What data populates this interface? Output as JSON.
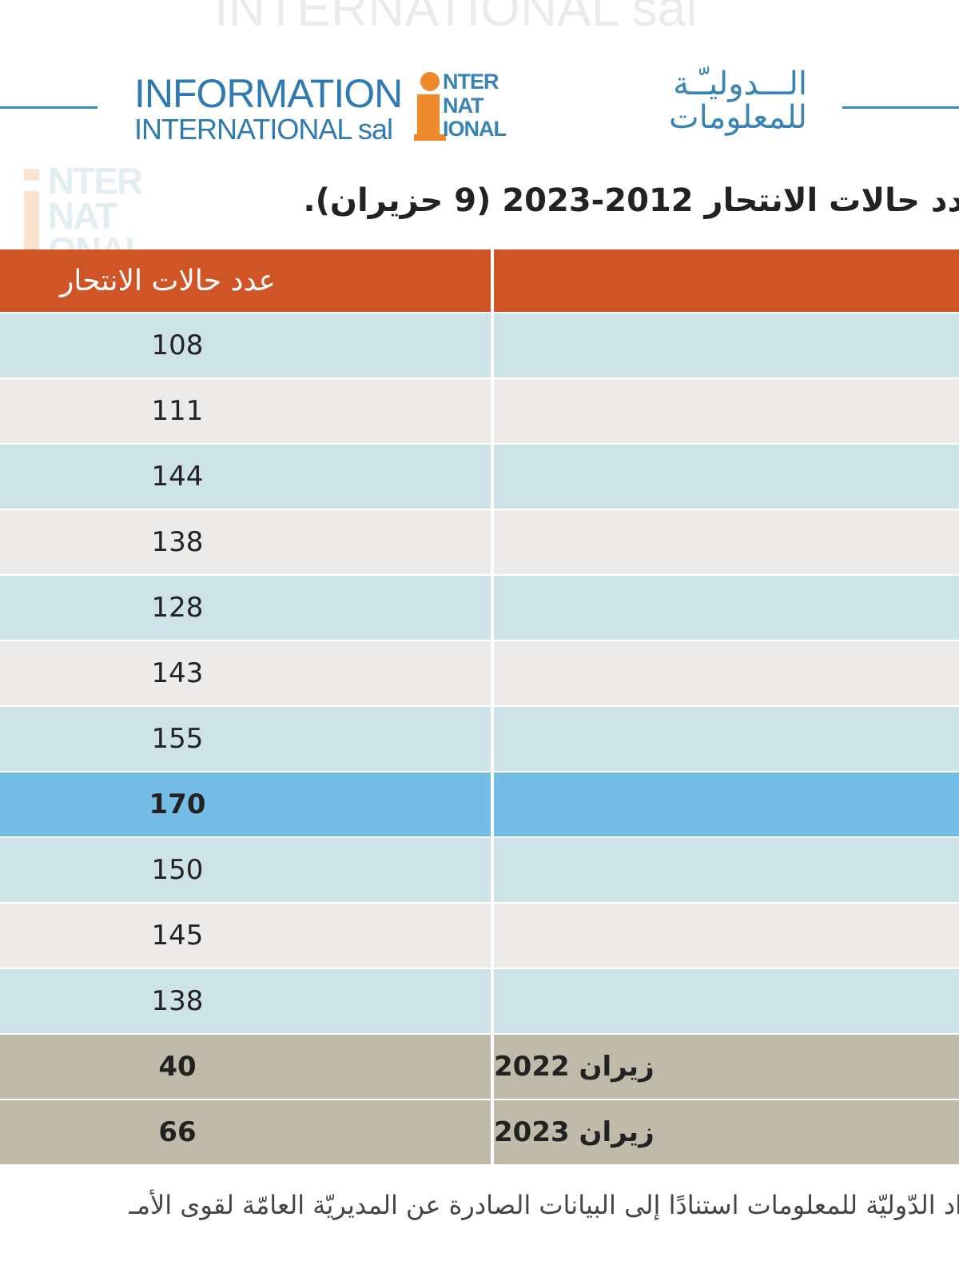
{
  "logo": {
    "en_line1": "INFORMATION",
    "en_line2": "INTERNATIONAL sal",
    "mark_lines": [
      "NTER",
      "NAT",
      "IONAL"
    ],
    "ar_line1": "الـــدوليـّـة",
    "ar_line2": "للمعلومات"
  },
  "title": "دد حالات الانتحار 2012-2023 (9 حزيران).",
  "table": {
    "header_value": "عدد حالات الانتحار",
    "header_label": "",
    "rows": [
      {
        "label": "",
        "value": "108",
        "style": "blue"
      },
      {
        "label": "",
        "value": "111",
        "style": "gray"
      },
      {
        "label": "",
        "value": "144",
        "style": "blue"
      },
      {
        "label": "",
        "value": "138",
        "style": "gray"
      },
      {
        "label": "",
        "value": "128",
        "style": "blue"
      },
      {
        "label": "",
        "value": "143",
        "style": "gray"
      },
      {
        "label": "",
        "value": "155",
        "style": "blue"
      },
      {
        "label": "",
        "value": "170",
        "style": "hl"
      },
      {
        "label": "",
        "value": "150",
        "style": "blue"
      },
      {
        "label": "",
        "value": "145",
        "style": "gray"
      },
      {
        "label": "",
        "value": "138",
        "style": "blue"
      },
      {
        "label": "زيران 2022",
        "value": "40",
        "style": "tan"
      },
      {
        "label": "زيران 2023",
        "value": "66",
        "style": "tan"
      }
    ]
  },
  "footnote": "اد الدّوليّة للمعلومات استنادًا إلى البيانات الصادرة عن المديريّة العامّة لقوى الأمـ",
  "colors": {
    "header": "#d05526",
    "row_blue": "#cde3e8",
    "row_gray": "#ecebea",
    "row_highlight": "#74bde6",
    "row_tan": "#bfbaa9",
    "logo_blue": "#3a83b5",
    "logo_orange": "#ef8a2c"
  }
}
